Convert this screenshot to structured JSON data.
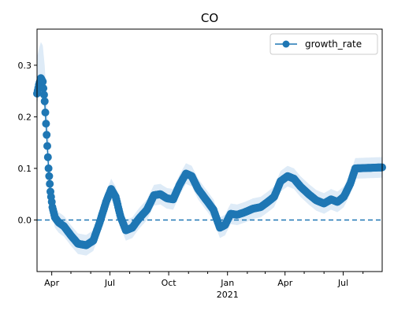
{
  "chart_data": {
    "type": "line",
    "title": "CO",
    "xlabel": "",
    "ylabel": "",
    "xlim": [
      "2020-03-09",
      "2021-08-31"
    ],
    "ylim": [
      -0.1,
      0.37
    ],
    "x_ticks": [
      {
        "date": "2020-04-01",
        "label": "Apr"
      },
      {
        "date": "2020-07-01",
        "label": "Jul"
      },
      {
        "date": "2020-10-01",
        "label": "Oct"
      },
      {
        "date": "2021-01-01",
        "label": "Jan"
      },
      {
        "date": "2021-04-01",
        "label": "Apr"
      },
      {
        "date": "2021-07-01",
        "label": "Jul"
      }
    ],
    "x_year_label": {
      "date": "2021-01-01",
      "label": "2021"
    },
    "x_minor_tick_dates": [
      "2020-05-01",
      "2020-06-01",
      "2020-08-01",
      "2020-09-01",
      "2020-11-01",
      "2020-12-01",
      "2021-02-01",
      "2021-03-01",
      "2021-05-01",
      "2021-06-01",
      "2021-08-01"
    ],
    "y_ticks": [
      {
        "value": 0.0,
        "label": "0.0"
      },
      {
        "value": 0.1,
        "label": "0.1"
      },
      {
        "value": 0.2,
        "label": "0.2"
      },
      {
        "value": 0.3,
        "label": "0.3"
      }
    ],
    "reference_line": {
      "y": 0.0,
      "style": "dashed",
      "color": "#1f77b4"
    },
    "legend": {
      "position": "top-right",
      "entries": [
        "growth_rate"
      ]
    },
    "grid": false,
    "series": [
      {
        "name": "growth_rate",
        "color": "#1f77b4",
        "marker": "circle",
        "band_color": "#d6e6f5",
        "band_width": 0.02,
        "keypoints": [
          {
            "x": "2020-03-09",
            "y": 0.245
          },
          {
            "x": "2020-03-12",
            "y": 0.262
          },
          {
            "x": "2020-03-15",
            "y": 0.275
          },
          {
            "x": "2020-03-18",
            "y": 0.268
          },
          {
            "x": "2020-03-21",
            "y": 0.23
          },
          {
            "x": "2020-03-24",
            "y": 0.165
          },
          {
            "x": "2020-03-27",
            "y": 0.1
          },
          {
            "x": "2020-03-30",
            "y": 0.055
          },
          {
            "x": "2020-04-02",
            "y": 0.025
          },
          {
            "x": "2020-04-06",
            "y": 0.005
          },
          {
            "x": "2020-04-12",
            "y": -0.005
          },
          {
            "x": "2020-04-20",
            "y": -0.012
          },
          {
            "x": "2020-05-01",
            "y": -0.03
          },
          {
            "x": "2020-05-12",
            "y": -0.046
          },
          {
            "x": "2020-05-25",
            "y": -0.049
          },
          {
            "x": "2020-06-05",
            "y": -0.04
          },
          {
            "x": "2020-06-15",
            "y": -0.005
          },
          {
            "x": "2020-06-25",
            "y": 0.035
          },
          {
            "x": "2020-07-03",
            "y": 0.06
          },
          {
            "x": "2020-07-10",
            "y": 0.045
          },
          {
            "x": "2020-07-18",
            "y": 0.005
          },
          {
            "x": "2020-07-26",
            "y": -0.02
          },
          {
            "x": "2020-08-05",
            "y": -0.015
          },
          {
            "x": "2020-08-15",
            "y": 0.002
          },
          {
            "x": "2020-08-28",
            "y": 0.02
          },
          {
            "x": "2020-09-08",
            "y": 0.048
          },
          {
            "x": "2020-09-18",
            "y": 0.05
          },
          {
            "x": "2020-09-28",
            "y": 0.042
          },
          {
            "x": "2020-10-08",
            "y": 0.04
          },
          {
            "x": "2020-10-18",
            "y": 0.068
          },
          {
            "x": "2020-10-28",
            "y": 0.09
          },
          {
            "x": "2020-11-06",
            "y": 0.085
          },
          {
            "x": "2020-11-16",
            "y": 0.06
          },
          {
            "x": "2020-11-28",
            "y": 0.04
          },
          {
            "x": "2020-12-10",
            "y": 0.02
          },
          {
            "x": "2020-12-20",
            "y": -0.015
          },
          {
            "x": "2020-12-28",
            "y": -0.01
          },
          {
            "x": "2021-01-06",
            "y": 0.012
          },
          {
            "x": "2021-01-16",
            "y": 0.01
          },
          {
            "x": "2021-01-28",
            "y": 0.015
          },
          {
            "x": "2021-02-10",
            "y": 0.022
          },
          {
            "x": "2021-02-22",
            "y": 0.025
          },
          {
            "x": "2021-03-05",
            "y": 0.035
          },
          {
            "x": "2021-03-15",
            "y": 0.045
          },
          {
            "x": "2021-03-25",
            "y": 0.075
          },
          {
            "x": "2021-04-05",
            "y": 0.085
          },
          {
            "x": "2021-04-15",
            "y": 0.08
          },
          {
            "x": "2021-04-25",
            "y": 0.065
          },
          {
            "x": "2021-05-08",
            "y": 0.05
          },
          {
            "x": "2021-05-20",
            "y": 0.038
          },
          {
            "x": "2021-06-01",
            "y": 0.032
          },
          {
            "x": "2021-06-12",
            "y": 0.04
          },
          {
            "x": "2021-06-22",
            "y": 0.035
          },
          {
            "x": "2021-07-02",
            "y": 0.045
          },
          {
            "x": "2021-07-12",
            "y": 0.07
          },
          {
            "x": "2021-07-20",
            "y": 0.1
          },
          {
            "x": "2021-08-31",
            "y": 0.102
          }
        ]
      }
    ]
  }
}
